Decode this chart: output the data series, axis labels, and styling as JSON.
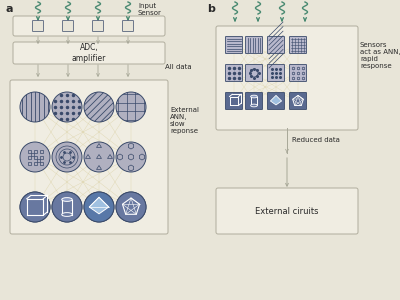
{
  "bg_color": "#e8e5d8",
  "box_bg": "#f0ede2",
  "box_edge": "#b0ad9e",
  "arrow_color": "#4a8a72",
  "connector_color": "#a8a898",
  "text_color": "#2a2a2a",
  "dark_blue": "#3a4a6a",
  "medium_blue": "#5a6a8a",
  "circle_fill": "#b8b8c8",
  "square_fill": "#4a5a7a",
  "ann_line_color": "#d4c890",
  "title_a": "a",
  "title_b": "b",
  "label_input": "Input\nSensor",
  "label_adc": "ADC,\namplifier",
  "label_alldata": "All data",
  "label_extann": "External\nANN,\nslow\nreponse",
  "label_sensors_ann": "Sensors\nact as ANN,\nrapid\nresponse",
  "label_reduced": "Reduced data",
  "label_extcircuits": "External ciruits",
  "figw": 4.0,
  "figh": 3.0,
  "dpi": 100
}
